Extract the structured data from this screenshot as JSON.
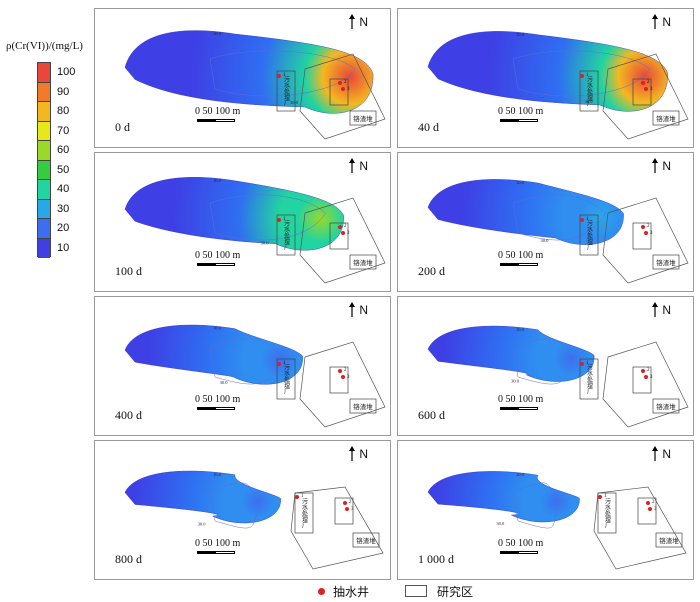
{
  "legend": {
    "title": "ρ(Cr(VI))/(mg/L)",
    "ticks": [
      "100",
      "90",
      "80",
      "70",
      "60",
      "50",
      "40",
      "30",
      "20",
      "10"
    ],
    "colors": [
      "#e8473a",
      "#f07c2a",
      "#f3b820",
      "#e6e81c",
      "#9ad82a",
      "#35cc40",
      "#22d4a0",
      "#29a8e8",
      "#3d6ef0",
      "#4040e0"
    ]
  },
  "north_label": "N",
  "scale_label": "0   50 100 m",
  "panels": [
    {
      "day": "0 d",
      "level": 1.0
    },
    {
      "day": "40 d",
      "level": 0.92
    },
    {
      "day": "100 d",
      "level": 0.72
    },
    {
      "day": "200 d",
      "level": 0.5
    },
    {
      "day": "400 d",
      "level": 0.33
    },
    {
      "day": "600 d",
      "level": 0.22
    },
    {
      "day": "800 d",
      "level": 0.12
    },
    {
      "day": "1 000 d",
      "level": 0.08
    }
  ],
  "map_labels": {
    "well_1": "1",
    "well_2": "2",
    "well_3": "3",
    "sewage_plant": "污水处理厂",
    "landfill": "铬渣堆",
    "contour_10": "10.0",
    "contour_30": "30.0"
  },
  "bottom_legend": {
    "well": "抽水井",
    "study_area": "研究区"
  }
}
